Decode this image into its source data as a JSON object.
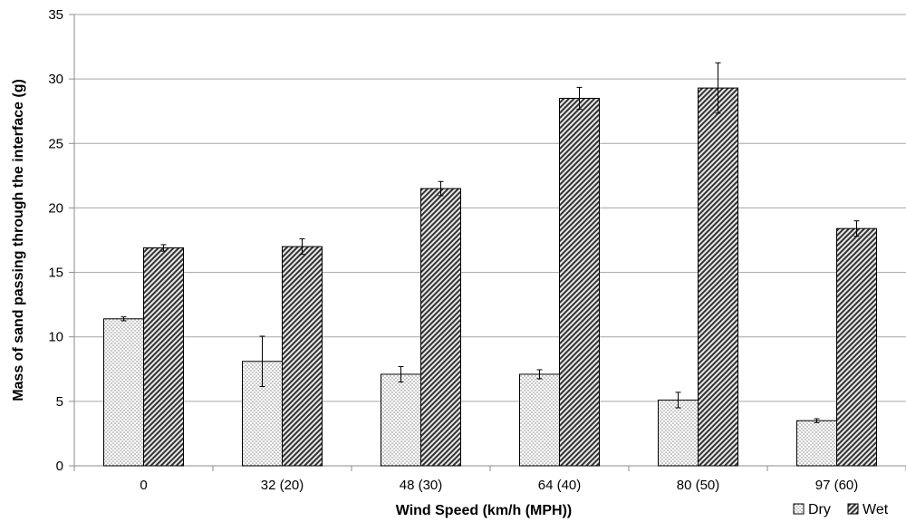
{
  "chart_data": {
    "type": "bar",
    "title": "",
    "xlabel": "Wind Speed (km/h (MPH))",
    "ylabel": "Mass of sand passing through the interface (g)",
    "ylim": [
      0,
      35
    ],
    "yticks": [
      0,
      5,
      10,
      15,
      20,
      25,
      30,
      35
    ],
    "grid": true,
    "legend_position": "bottom-right",
    "categories": [
      "0",
      "32 (20)",
      "48 (30)",
      "64 (40)",
      "80 (50)",
      "97 (60)"
    ],
    "series": [
      {
        "name": "Dry",
        "pattern": "dots",
        "values": [
          11.4,
          8.1,
          7.1,
          7.1,
          5.1,
          3.5
        ],
        "errors": [
          0.15,
          1.95,
          0.6,
          0.35,
          0.6,
          0.15
        ]
      },
      {
        "name": "Wet",
        "pattern": "diagonal-hatch",
        "values": [
          16.9,
          17.0,
          21.5,
          28.5,
          29.3,
          18.4
        ],
        "errors": [
          0.25,
          0.6,
          0.55,
          0.85,
          1.95,
          0.6
        ]
      }
    ]
  }
}
